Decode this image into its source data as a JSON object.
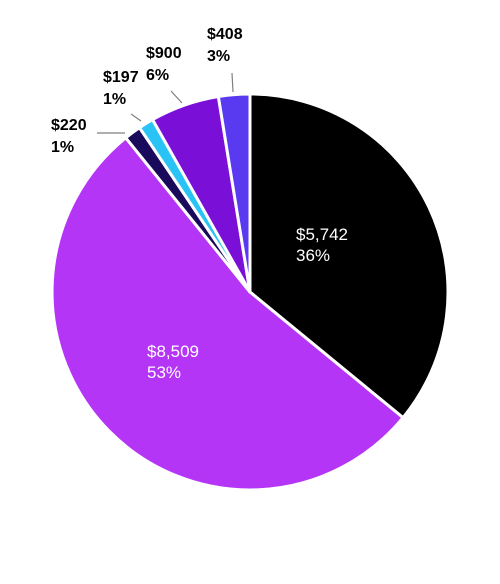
{
  "chart_data": {
    "type": "pie",
    "title": "",
    "slices": [
      {
        "value_label": "$5,742",
        "pct_label": "36%",
        "value": 5742,
        "color": "#000000",
        "label_position": "inside",
        "label_color": "#ffffff"
      },
      {
        "value_label": "$8,509",
        "pct_label": "53%",
        "value": 8509,
        "color": "#b535f6",
        "label_position": "inside",
        "label_color": "#ffffff"
      },
      {
        "value_label": "$220",
        "pct_label": "1%",
        "value": 220,
        "color": "#1a0a5c",
        "label_position": "outside"
      },
      {
        "value_label": "$197",
        "pct_label": "1%",
        "value": 197,
        "color": "#29c3f5",
        "label_position": "outside"
      },
      {
        "value_label": "$900",
        "pct_label": "6%",
        "value": 900,
        "color": "#7a10d8",
        "label_position": "outside"
      },
      {
        "value_label": "$408",
        "pct_label": "3%",
        "value": 408,
        "color": "#5a3af0",
        "label_position": "outside"
      }
    ]
  }
}
